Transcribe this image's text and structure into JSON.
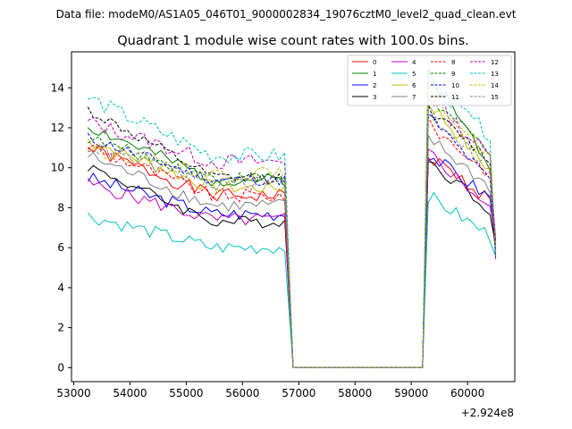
{
  "header": {
    "file_line": "Data file: modeM0/AS1A05_046T01_9000002834_19076cztM0_level2_quad_clean.evt"
  },
  "chart_data": {
    "type": "line",
    "title": "Quadrant 1 module wise count rates with 100.0s bins.",
    "xlabel": "",
    "ylabel": "",
    "x_offset_label": "+2.924e8",
    "xlim": [
      52960,
      60840
    ],
    "ylim": [
      -0.7,
      15.8
    ],
    "x_ticks": [
      {
        "value": 53000,
        "label": "53000"
      },
      {
        "value": 54000,
        "label": "54000"
      },
      {
        "value": 55000,
        "label": "55000"
      },
      {
        "value": 56000,
        "label": "56000"
      },
      {
        "value": 57000,
        "label": "57000"
      },
      {
        "value": 58000,
        "label": "58000"
      },
      {
        "value": 59000,
        "label": "59000"
      },
      {
        "value": 60000,
        "label": "60000"
      }
    ],
    "y_ticks": [
      {
        "value": 0,
        "label": "0"
      },
      {
        "value": 2,
        "label": "2"
      },
      {
        "value": 4,
        "label": "4"
      },
      {
        "value": 6,
        "label": "6"
      },
      {
        "value": 8,
        "label": "8"
      },
      {
        "value": 10,
        "label": "10"
      },
      {
        "value": 12,
        "label": "12"
      },
      {
        "value": 14,
        "label": "14"
      }
    ],
    "grid": false,
    "legend_position": "top-right",
    "series": [
      {
        "name": "0",
        "color": "#ff0000",
        "dash": "solid",
        "seg1": [
          11.0,
          8.6
        ],
        "seg2": [
          10.6,
          8.3
        ],
        "noise": 0.35
      },
      {
        "name": "1",
        "color": "#008000",
        "dash": "solid",
        "seg1": [
          12.1,
          9.4
        ],
        "seg2": [
          14.8,
          10.0
        ],
        "noise": 0.35
      },
      {
        "name": "2",
        "color": "#0000ff",
        "dash": "solid",
        "seg1": [
          9.5,
          7.7
        ],
        "seg2": [
          10.7,
          8.4
        ],
        "noise": 0.35
      },
      {
        "name": "3",
        "color": "#000000",
        "dash": "solid",
        "seg1": [
          10.1,
          7.3
        ],
        "seg2": [
          10.4,
          7.8
        ],
        "noise": 0.3
      },
      {
        "name": "4",
        "color": "#bf00bf",
        "dash": "solid",
        "seg1": [
          9.2,
          7.4
        ],
        "seg2": [
          10.8,
          7.9
        ],
        "noise": 0.35
      },
      {
        "name": "5",
        "color": "#00bfbf",
        "dash": "solid",
        "seg1": [
          7.6,
          6.0
        ],
        "seg2": [
          8.6,
          6.5
        ],
        "noise": 0.35
      },
      {
        "name": "6",
        "color": "#bfbf00",
        "dash": "solid",
        "seg1": [
          11.4,
          9.0
        ],
        "seg2": [
          13.3,
          9.7
        ],
        "noise": 0.35
      },
      {
        "name": "7",
        "color": "#808080",
        "dash": "solid",
        "seg1": [
          10.6,
          8.1
        ],
        "seg2": [
          11.5,
          8.9
        ],
        "noise": 0.35
      },
      {
        "name": "8",
        "color": "#ff0000",
        "dash": "dashed",
        "seg1": [
          11.1,
          8.6
        ],
        "seg2": [
          12.2,
          9.6
        ],
        "noise": 0.35
      },
      {
        "name": "9",
        "color": "#008000",
        "dash": "dashed",
        "seg1": [
          11.5,
          9.5
        ],
        "seg2": [
          13.5,
          10.7
        ],
        "noise": 0.3
      },
      {
        "name": "10",
        "color": "#0000ff",
        "dash": "dashed",
        "seg1": [
          11.5,
          9.4
        ],
        "seg2": [
          12.6,
          9.2
        ],
        "noise": 0.3
      },
      {
        "name": "11",
        "color": "#000000",
        "dash": "dashed",
        "seg1": [
          12.9,
          9.5
        ],
        "seg2": [
          12.9,
          10.3
        ],
        "noise": 0.3
      },
      {
        "name": "12",
        "color": "#bf00bf",
        "dash": "dashed",
        "seg1": [
          12.3,
          10.3
        ],
        "seg2": [
          13.6,
          10.4
        ],
        "noise": 0.4
      },
      {
        "name": "13",
        "color": "#00bfbf",
        "dash": "dashed",
        "seg1": [
          13.5,
          10.6
        ],
        "seg2": [
          14.3,
          11.5
        ],
        "noise": 0.4
      },
      {
        "name": "14",
        "color": "#bfbf00",
        "dash": "dashed",
        "seg1": [
          11.0,
          9.7
        ],
        "seg2": [
          13.8,
          10.4
        ],
        "noise": 0.35
      },
      {
        "name": "15",
        "color": "#808080",
        "dash": "dashed",
        "seg1": [
          11.1,
          9.2
        ],
        "seg2": [
          12.8,
          9.9
        ],
        "noise": 0.35
      }
    ],
    "time_segments": {
      "seg1_start": 53250,
      "seg1_end": 56800,
      "gap_start": 56900,
      "gap_end": 59200,
      "seg2_start": 59300,
      "seg2_end": 60450,
      "end_value": 6.0,
      "bin": 100
    }
  }
}
